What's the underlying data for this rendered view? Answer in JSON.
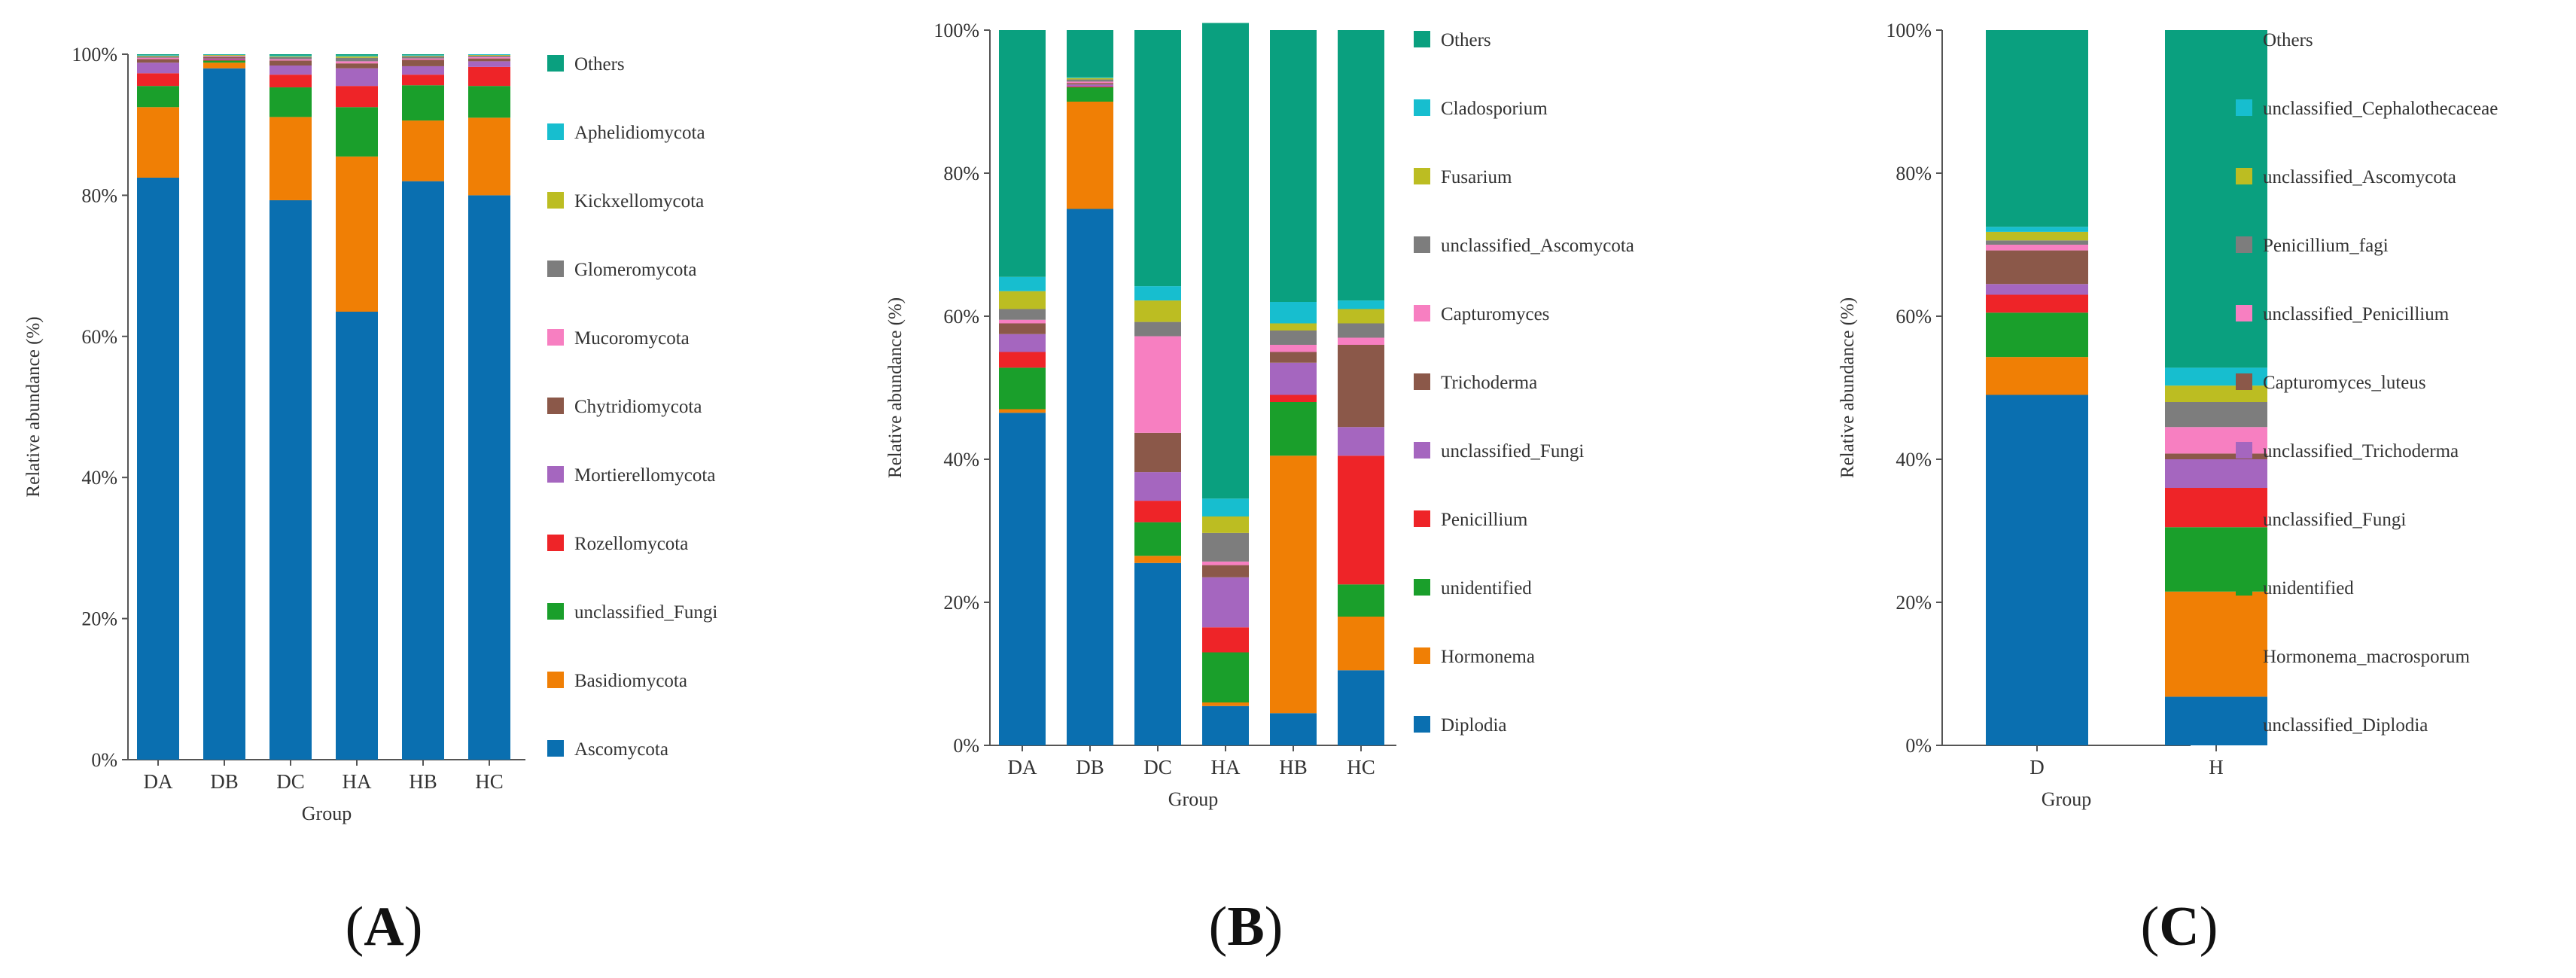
{
  "palette": {
    "Ascomycota": "#0a6fb0",
    "Basidiomycota": "#f07f05",
    "unclassified_Fungi_A": "#1a9f2b",
    "Rozellomycota": "#ee2428",
    "Mortierellomycota": "#a566bf",
    "Chytridiomycota": "#8b5849",
    "Mucoromycota": "#f77fc1",
    "Glomeromycota": "#7d7d7d",
    "Kickxellomycota": "#bcbd22",
    "Aphelidiomycota": "#17becf",
    "Others": "#0aa07f"
  },
  "chart_data": [
    {
      "id": "A",
      "type": "stacked-bar",
      "panel_label": "A",
      "xlabel": "Group",
      "ylabel": "Relative abundance (%)",
      "ylim": [
        0,
        100
      ],
      "yticks": [
        "0%",
        "20%",
        "40%",
        "60%",
        "80%",
        "100%"
      ],
      "categories": [
        "DA",
        "DB",
        "DC",
        "HA",
        "HB",
        "HC"
      ],
      "series": [
        {
          "name": "Ascomycota",
          "color": "#0a6fb0",
          "values": [
            82.5,
            98.0,
            79.3,
            63.5,
            82.0,
            80.0
          ]
        },
        {
          "name": "Basidiomycota",
          "color": "#f07f05",
          "values": [
            10.0,
            0.8,
            11.8,
            22.0,
            8.6,
            11.0
          ]
        },
        {
          "name": "unclassified_Fungi",
          "color": "#1a9f2b",
          "values": [
            3.0,
            0.3,
            4.2,
            7.0,
            5.0,
            4.5
          ]
        },
        {
          "name": "Rozellomycota",
          "color": "#ee2428",
          "values": [
            1.8,
            0.1,
            1.8,
            3.0,
            1.5,
            2.7
          ]
        },
        {
          "name": "Mortierellomycota",
          "color": "#a566bf",
          "values": [
            1.5,
            0.2,
            1.3,
            2.5,
            1.2,
            0.8
          ]
        },
        {
          "name": "Chytridiomycota",
          "color": "#8b5849",
          "values": [
            0.5,
            0.2,
            0.7,
            0.7,
            0.9,
            0.4
          ]
        },
        {
          "name": "Mucoromycota",
          "color": "#f77fc1",
          "values": [
            0.2,
            0.1,
            0.2,
            0.3,
            0.2,
            0.2
          ]
        },
        {
          "name": "Glomeromycota",
          "color": "#7d7d7d",
          "values": [
            0.2,
            0.1,
            0.3,
            0.5,
            0.3,
            0.2
          ]
        },
        {
          "name": "Kickxellomycota",
          "color": "#bcbd22",
          "values": [
            0.1,
            0.1,
            0.1,
            0.2,
            0.1,
            0.1
          ]
        },
        {
          "name": "Aphelidiomycota",
          "color": "#17becf",
          "values": [
            0.1,
            0.05,
            0.1,
            0.1,
            0.1,
            0.1
          ]
        },
        {
          "name": "Others",
          "color": "#0aa07f",
          "values": [
            0.1,
            0.05,
            0.2,
            0.2,
            0.1,
            0.0
          ]
        }
      ]
    },
    {
      "id": "B",
      "type": "stacked-bar",
      "panel_label": "B",
      "xlabel": "Group",
      "ylabel": "Relative abundance (%)",
      "ylim": [
        0,
        100
      ],
      "yticks": [
        "0%",
        "20%",
        "40%",
        "60%",
        "80%",
        "100%"
      ],
      "categories": [
        "DA",
        "DB",
        "DC",
        "HA",
        "HB",
        "HC"
      ],
      "series": [
        {
          "name": "Diplodia",
          "color": "#0a6fb0",
          "values": [
            46.5,
            75.0,
            25.5,
            5.5,
            4.5,
            10.5
          ]
        },
        {
          "name": "Hormonema",
          "color": "#f07f05",
          "values": [
            0.5,
            15.0,
            1.0,
            0.5,
            36.0,
            7.5
          ]
        },
        {
          "name": "unidentified",
          "color": "#1a9f2b",
          "values": [
            5.8,
            2.0,
            4.7,
            7.0,
            7.5,
            4.5
          ]
        },
        {
          "name": "Penicillium",
          "color": "#ee2428",
          "values": [
            2.2,
            0.1,
            3.0,
            3.5,
            1.0,
            18.0
          ]
        },
        {
          "name": "unclassified_Fungi",
          "color": "#a566bf",
          "values": [
            2.5,
            0.3,
            4.0,
            7.0,
            4.5,
            4.0
          ]
        },
        {
          "name": "Trichoderma",
          "color": "#8b5849",
          "values": [
            1.5,
            0.2,
            5.5,
            1.7,
            1.5,
            11.5
          ]
        },
        {
          "name": "Capturomyces",
          "color": "#f77fc1",
          "values": [
            0.5,
            0.2,
            13.5,
            0.5,
            1.0,
            1.0
          ]
        },
        {
          "name": "unclassified_Ascomycota",
          "color": "#7d7d7d",
          "values": [
            1.5,
            0.3,
            2.0,
            4.0,
            2.0,
            2.0
          ]
        },
        {
          "name": "Fusarium",
          "color": "#bcbd22",
          "values": [
            2.5,
            0.2,
            3.0,
            2.3,
            1.0,
            2.0
          ]
        },
        {
          "name": "Cladosporium",
          "color": "#17becf",
          "values": [
            2.0,
            0.1,
            2.0,
            2.5,
            3.0,
            1.2
          ]
        },
        {
          "name": "Others",
          "color": "#0aa07f",
          "values": [
            34.5,
            6.6,
            35.8,
            66.5,
            38.0,
            37.8
          ]
        }
      ]
    },
    {
      "id": "C",
      "type": "stacked-bar",
      "panel_label": "C",
      "xlabel": "Group",
      "ylabel": "Relative abundance (%)",
      "ylim": [
        0,
        100
      ],
      "yticks": [
        "0%",
        "20%",
        "40%",
        "60%",
        "80%",
        "100%"
      ],
      "categories": [
        "D",
        "H"
      ],
      "series": [
        {
          "name": "unclassified_Diplodia",
          "color": "#0a6fb0",
          "values": [
            49.0,
            6.8
          ]
        },
        {
          "name": "Hormonema_macrosporum",
          "color": "#f07f05",
          "values": [
            5.3,
            14.7
          ]
        },
        {
          "name": "unidentified",
          "color": "#1a9f2b",
          "values": [
            6.2,
            9.0
          ]
        },
        {
          "name": "unclassified_Fungi",
          "color": "#ee2428",
          "values": [
            2.5,
            5.5
          ]
        },
        {
          "name": "unclassified_Trichoderma",
          "color": "#a566bf",
          "values": [
            1.5,
            4.0
          ]
        },
        {
          "name": "Capturomyces_luteus",
          "color": "#8b5849",
          "values": [
            4.7,
            0.8
          ]
        },
        {
          "name": "unclassified_Penicillium",
          "color": "#f77fc1",
          "values": [
            0.8,
            3.7
          ]
        },
        {
          "name": "Penicillium_fagi",
          "color": "#7d7d7d",
          "values": [
            0.6,
            3.5
          ]
        },
        {
          "name": "unclassified_Ascomycota",
          "color": "#bcbd22",
          "values": [
            1.2,
            2.3
          ]
        },
        {
          "name": "unclassified_Cephalothecaceae",
          "color": "#17becf",
          "values": [
            0.7,
            2.5
          ]
        },
        {
          "name": "Others",
          "color": "#0aa07f",
          "values": [
            27.5,
            47.2
          ]
        }
      ]
    }
  ]
}
